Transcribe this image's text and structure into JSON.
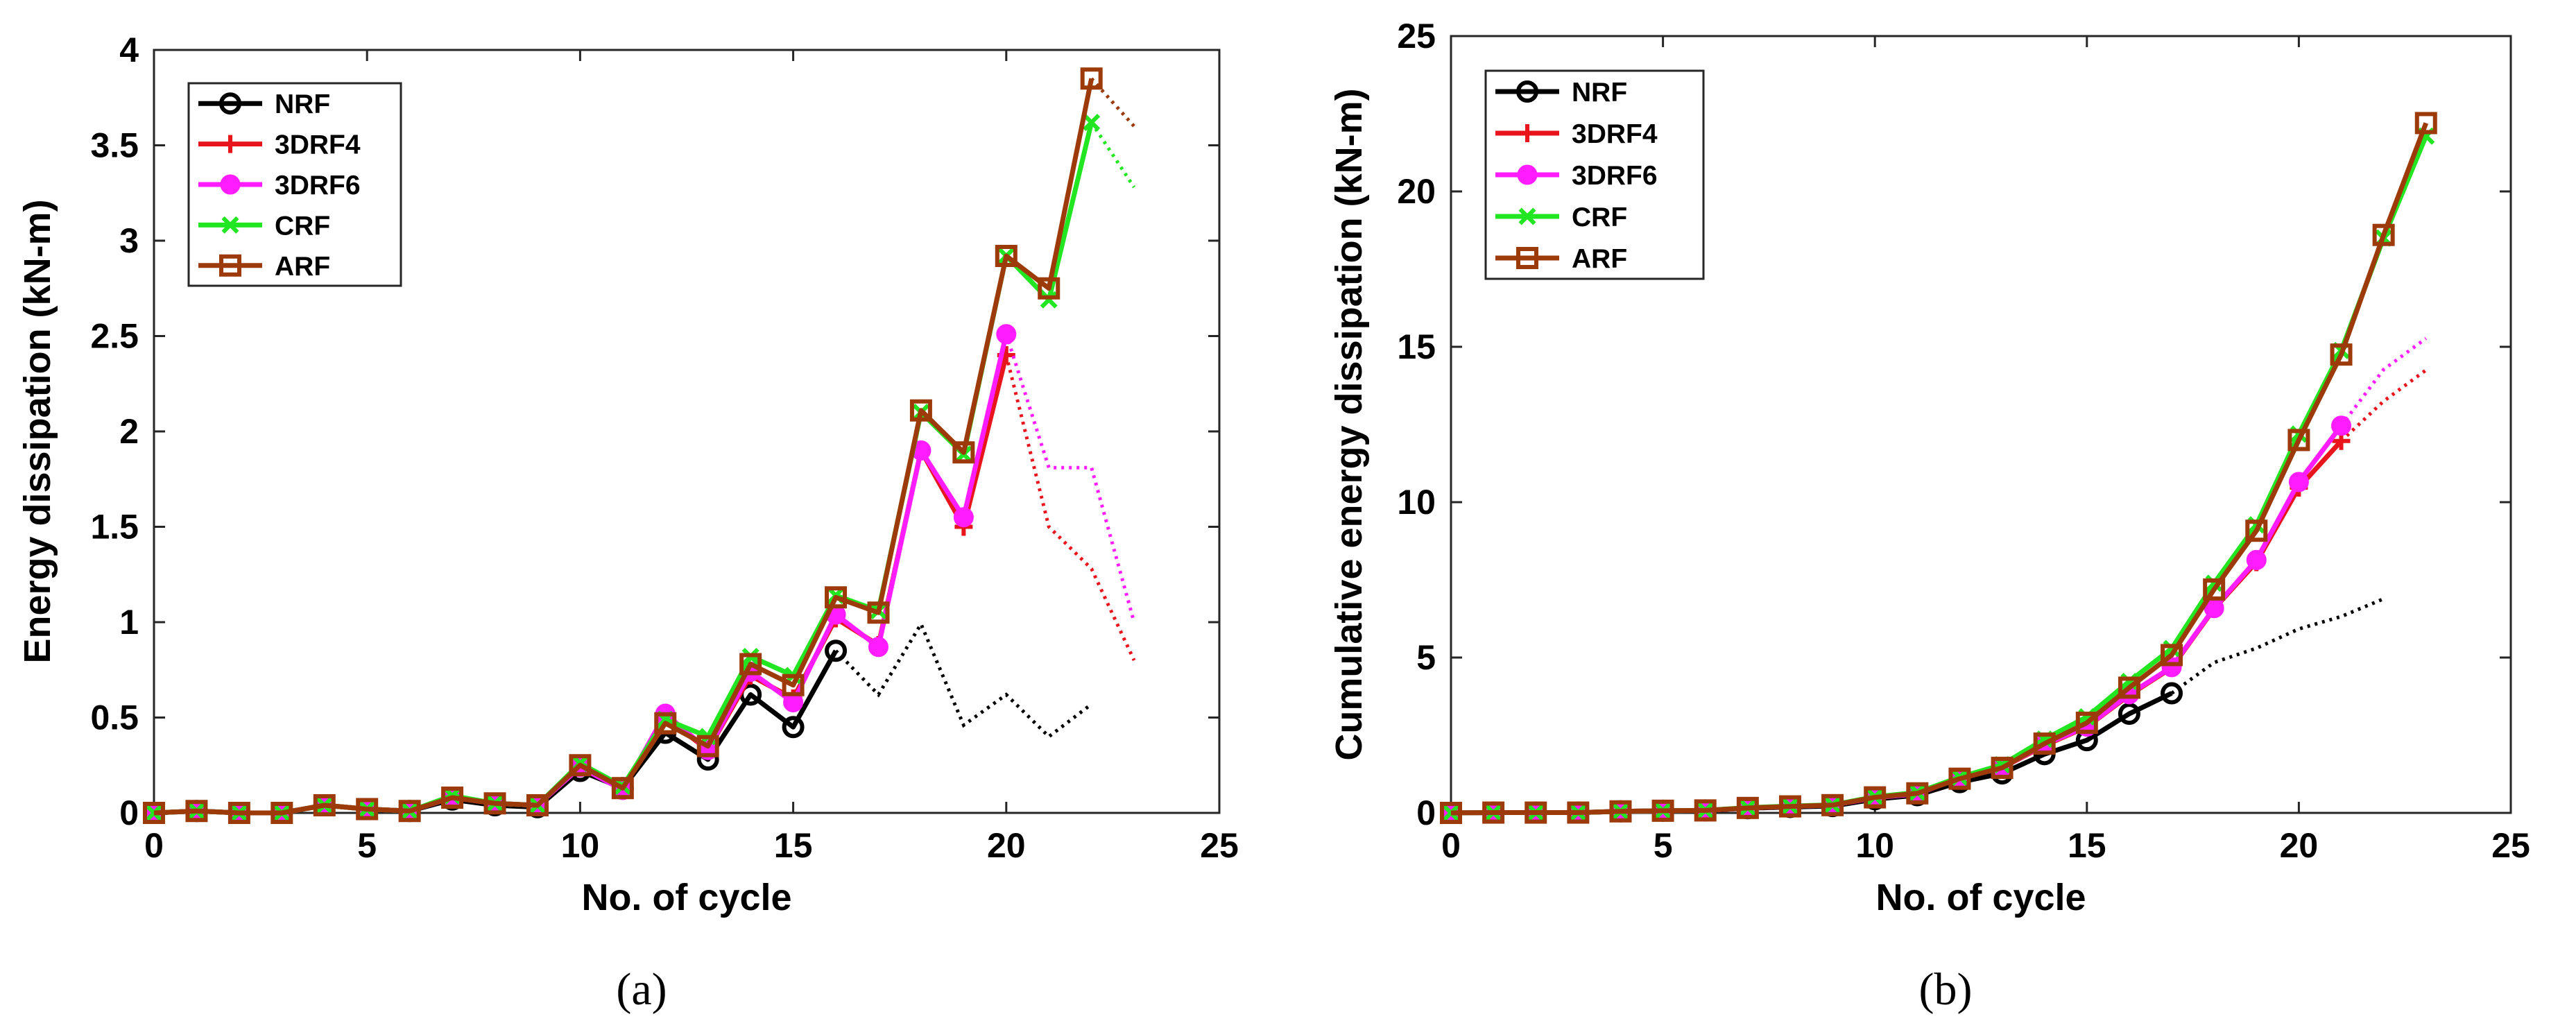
{
  "chart_data": [
    {
      "type": "line",
      "caption": "(a)",
      "xlabel": "No. of cycle",
      "ylabel": "Energy dissipation (kN-m)",
      "xlim": [
        0,
        25
      ],
      "ylim": [
        0,
        4
      ],
      "xticks": [
        0,
        5,
        10,
        15,
        20,
        25
      ],
      "yticks": [
        0,
        0.5,
        1,
        1.5,
        2,
        2.5,
        3,
        3.5,
        4
      ],
      "ytick_labels": [
        "0",
        "0.5",
        "1",
        "1.5",
        "2",
        "2.5",
        "3",
        "3.5",
        "4"
      ],
      "grid": false,
      "legend_position": "top-left",
      "series": [
        {
          "name": "NRF",
          "color": "#000000",
          "marker": "circle",
          "x": [
            0,
            1,
            2,
            3,
            4,
            5,
            6,
            7,
            8,
            9,
            10,
            11,
            12,
            13,
            14,
            15,
            16
          ],
          "y": [
            0,
            0.01,
            0,
            0,
            0.04,
            0.02,
            0.01,
            0.07,
            0.04,
            0.03,
            0.22,
            0.13,
            0.42,
            0.28,
            0.62,
            0.45,
            0.85
          ],
          "extrapolated": {
            "x": [
              16,
              17,
              18,
              19,
              20,
              21,
              22
            ],
            "y": [
              0.85,
              0.62,
              0.99,
              0.46,
              0.62,
              0.4,
              0.57
            ]
          }
        },
        {
          "name": "3DRF4",
          "color": "#e8161c",
          "marker": "plus",
          "x": [
            0,
            1,
            2,
            3,
            4,
            5,
            6,
            7,
            8,
            9,
            10,
            11,
            12,
            13,
            14,
            15,
            16,
            17,
            18,
            19,
            20
          ],
          "y": [
            0,
            0.01,
            0,
            0,
            0.04,
            0.02,
            0.01,
            0.08,
            0.05,
            0.04,
            0.24,
            0.13,
            0.5,
            0.33,
            0.72,
            0.6,
            1.02,
            0.88,
            1.9,
            1.5,
            2.4
          ],
          "extrapolated": {
            "x": [
              20,
              21,
              22,
              23
            ],
            "y": [
              2.4,
              1.5,
              1.28,
              0.8
            ]
          }
        },
        {
          "name": "3DRF6",
          "color": "#ff1dff",
          "marker": "filled-circle",
          "x": [
            0,
            1,
            2,
            3,
            4,
            5,
            6,
            7,
            8,
            9,
            10,
            11,
            12,
            13,
            14,
            15,
            16,
            17,
            18,
            19,
            20
          ],
          "y": [
            0,
            0.01,
            0,
            0,
            0.04,
            0.02,
            0.01,
            0.08,
            0.05,
            0.04,
            0.24,
            0.12,
            0.52,
            0.33,
            0.74,
            0.58,
            1.04,
            0.87,
            1.9,
            1.55,
            2.51
          ],
          "extrapolated": {
            "x": [
              20,
              21,
              22,
              23
            ],
            "y": [
              2.51,
              1.81,
              1.81,
              1.0
            ]
          }
        },
        {
          "name": "CRF",
          "color": "#22e622",
          "marker": "x",
          "x": [
            0,
            1,
            2,
            3,
            4,
            5,
            6,
            7,
            8,
            9,
            10,
            11,
            12,
            13,
            14,
            15,
            16,
            17,
            18,
            19,
            20,
            21,
            22
          ],
          "y": [
            0,
            0.01,
            0,
            0,
            0.04,
            0.02,
            0.01,
            0.09,
            0.05,
            0.04,
            0.26,
            0.14,
            0.49,
            0.4,
            0.82,
            0.72,
            1.14,
            1.06,
            2.1,
            1.88,
            2.92,
            2.69,
            3.62
          ],
          "extrapolated": {
            "x": [
              22,
              23
            ],
            "y": [
              3.62,
              3.28
            ]
          }
        },
        {
          "name": "ARF",
          "color": "#9c3a0a",
          "marker": "square",
          "x": [
            0,
            1,
            2,
            3,
            4,
            5,
            6,
            7,
            8,
            9,
            10,
            11,
            12,
            13,
            14,
            15,
            16,
            17,
            18,
            19,
            20,
            21,
            22
          ],
          "y": [
            0,
            0.01,
            0,
            0,
            0.04,
            0.02,
            0.01,
            0.08,
            0.05,
            0.04,
            0.25,
            0.13,
            0.47,
            0.35,
            0.78,
            0.67,
            1.13,
            1.05,
            2.11,
            1.89,
            2.92,
            2.75,
            3.85
          ],
          "extrapolated": {
            "x": [
              22,
              23
            ],
            "y": [
              3.85,
              3.6
            ]
          }
        }
      ]
    },
    {
      "type": "line",
      "caption": "(b)",
      "xlabel": "No. of cycle",
      "ylabel": "Cumulative energy dissipation (kN-m)",
      "xlim": [
        0,
        25
      ],
      "ylim": [
        0,
        25
      ],
      "xticks": [
        0,
        5,
        10,
        15,
        20,
        25
      ],
      "yticks": [
        0,
        5,
        10,
        15,
        20,
        25
      ],
      "ytick_labels": [
        "0",
        "5",
        "10",
        "15",
        "20",
        "25"
      ],
      "grid": false,
      "legend_position": "top-left",
      "series": [
        {
          "name": "NRF",
          "color": "#000000",
          "marker": "circle",
          "x": [
            0,
            1,
            2,
            3,
            4,
            5,
            6,
            7,
            8,
            9,
            10,
            11,
            12,
            13,
            14,
            15,
            16,
            17
          ],
          "y": [
            0,
            0.01,
            0.01,
            0.01,
            0.05,
            0.07,
            0.08,
            0.15,
            0.19,
            0.22,
            0.44,
            0.57,
            0.99,
            1.27,
            1.89,
            2.34,
            3.19,
            3.85
          ],
          "extrapolated": {
            "x": [
              17,
              18,
              19,
              20,
              21,
              22
            ],
            "y": [
              3.85,
              4.84,
              5.3,
              5.92,
              6.32,
              6.89
            ]
          }
        },
        {
          "name": "3DRF4",
          "color": "#e8161c",
          "marker": "plus",
          "x": [
            0,
            1,
            2,
            3,
            4,
            5,
            6,
            7,
            8,
            9,
            10,
            11,
            12,
            13,
            14,
            15,
            16,
            17,
            18,
            19,
            20,
            21
          ],
          "y": [
            0,
            0.01,
            0.01,
            0.01,
            0.05,
            0.07,
            0.08,
            0.16,
            0.21,
            0.25,
            0.49,
            0.62,
            1.12,
            1.45,
            2.17,
            2.77,
            3.79,
            4.67,
            6.57,
            8.07,
            10.47,
            11.97
          ],
          "extrapolated": {
            "x": [
              21,
              22,
              23
            ],
            "y": [
              11.97,
              13.25,
              14.25
            ]
          }
        },
        {
          "name": "3DRF6",
          "color": "#ff1dff",
          "marker": "filled-circle",
          "x": [
            0,
            1,
            2,
            3,
            4,
            5,
            6,
            7,
            8,
            9,
            10,
            11,
            12,
            13,
            14,
            15,
            16,
            17,
            18,
            19,
            20,
            21
          ],
          "y": [
            0,
            0.01,
            0.01,
            0.01,
            0.05,
            0.07,
            0.08,
            0.16,
            0.21,
            0.25,
            0.49,
            0.61,
            1.13,
            1.46,
            2.2,
            2.78,
            3.82,
            4.69,
            6.59,
            8.14,
            10.65,
            12.46
          ],
          "extrapolated": {
            "x": [
              21,
              22,
              23
            ],
            "y": [
              12.46,
              14.27,
              15.27
            ]
          }
        },
        {
          "name": "CRF",
          "color": "#22e622",
          "marker": "x",
          "x": [
            0,
            1,
            2,
            3,
            4,
            5,
            6,
            7,
            8,
            9,
            10,
            11,
            12,
            13,
            14,
            15,
            16,
            17,
            18,
            19,
            20,
            21,
            22,
            23
          ],
          "y": [
            0,
            0.01,
            0.01,
            0.01,
            0.05,
            0.07,
            0.08,
            0.17,
            0.22,
            0.26,
            0.52,
            0.66,
            1.15,
            1.55,
            2.37,
            3.09,
            4.23,
            5.29,
            7.39,
            9.27,
            12.19,
            14.88,
            18.5,
            21.78
          ]
        },
        {
          "name": "ARF",
          "color": "#9c3a0a",
          "marker": "square",
          "x": [
            0,
            1,
            2,
            3,
            4,
            5,
            6,
            7,
            8,
            9,
            10,
            11,
            12,
            13,
            14,
            15,
            16,
            17,
            18,
            19,
            20,
            21,
            22,
            23
          ],
          "y": [
            0,
            0.01,
            0.01,
            0.01,
            0.05,
            0.07,
            0.08,
            0.16,
            0.21,
            0.25,
            0.5,
            0.63,
            1.1,
            1.45,
            2.23,
            2.9,
            4.03,
            5.08,
            7.19,
            9.08,
            12.0,
            14.75,
            18.6,
            22.2
          ]
        }
      ]
    }
  ]
}
